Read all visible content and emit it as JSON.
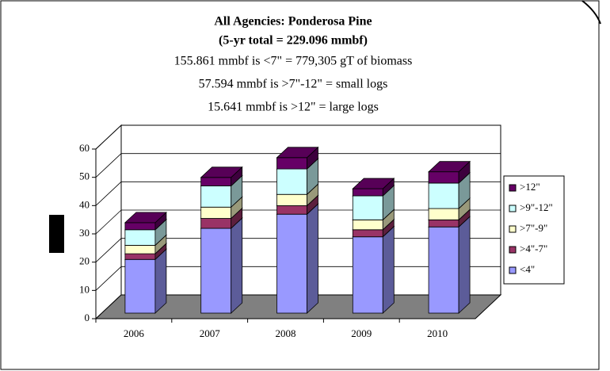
{
  "chart_data": {
    "type": "bar3d_stacked",
    "title": "All Agencies: Ponderosa Pine",
    "subtitle": "(5-yr total = 229.096 mmbf)",
    "annotations": [
      "155.861 mmbf is <7\" = 779,305 gT of biomass",
      "57.594 mmbf is >7\"-12\" = small logs",
      "15.641 mmbf is >12\" = large logs"
    ],
    "categories": [
      "2006",
      "2007",
      "2008",
      "2009",
      "2010"
    ],
    "series": [
      {
        "name": "<4\"",
        "color": "#9999ff",
        "values": [
          19,
          30,
          35,
          27,
          30.5
        ]
      },
      {
        "name": ">4\"-7\"",
        "color": "#993366",
        "values": [
          2,
          3.5,
          3,
          2.5,
          2.5
        ]
      },
      {
        "name": ">7\"-9\"",
        "color": "#ffffcc",
        "values": [
          3,
          4,
          4,
          3.5,
          4
        ]
      },
      {
        "name": ">9\"-12\"",
        "color": "#ccffff",
        "values": [
          5.5,
          7.5,
          9,
          8.5,
          9
        ]
      },
      {
        "name": ">12\"",
        "color": "#660066",
        "values": [
          2.5,
          3,
          4,
          2.5,
          4
        ]
      }
    ],
    "ylim": [
      0,
      60
    ],
    "yticks": [
      0,
      10,
      20,
      30,
      40,
      50,
      60
    ],
    "grid": true,
    "legend": "right"
  }
}
